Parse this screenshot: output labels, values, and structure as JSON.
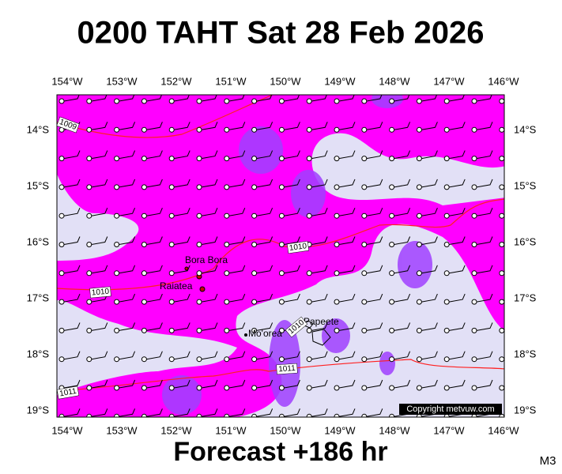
{
  "header": {
    "title": "0200 TAHT Sat 28 Feb 2026"
  },
  "axes": {
    "lon_labels": [
      "154°W",
      "153°W",
      "152°W",
      "151°W",
      "150°W",
      "149°W",
      "148°W",
      "147°W",
      "146°W"
    ],
    "lat_labels": [
      "14°S",
      "15°S",
      "16°S",
      "17°S",
      "18°S",
      "19°S"
    ]
  },
  "places": [
    "Bora Bora",
    "Raiatea",
    "Mo'orea",
    "Papeete"
  ],
  "isobar_labels": [
    "1009",
    "1010",
    "1010",
    "1011",
    "1011",
    "1010"
  ],
  "copyright": "Copyright metvuw.com",
  "footer": {
    "forecast": "Forecast +186 hr",
    "code": "M3"
  }
}
